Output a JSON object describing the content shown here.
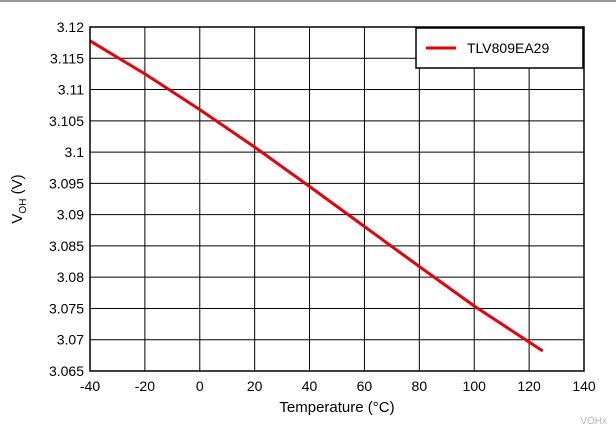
{
  "chart_data": {
    "type": "line",
    "xlabel": "Temperature (°C)",
    "ylabel": {
      "main": "V",
      "sub": "OH",
      "unit": " (V)"
    },
    "xlim": [
      -40,
      140
    ],
    "ylim": [
      3.065,
      3.12
    ],
    "x_ticks": [
      -40,
      -20,
      0,
      20,
      40,
      60,
      80,
      100,
      120,
      140
    ],
    "y_ticks": [
      3.065,
      3.07,
      3.075,
      3.08,
      3.085,
      3.09,
      3.095,
      3.1,
      3.105,
      3.11,
      3.115,
      3.12
    ],
    "x_tick_labels": [
      "-40",
      "-20",
      "0",
      "20",
      "40",
      "60",
      "80",
      "100",
      "120",
      "140"
    ],
    "y_tick_labels": [
      "3.065",
      "3.07",
      "3.075",
      "3.08",
      "3.085",
      "3.09",
      "3.095",
      "3.1",
      "3.105",
      "3.11",
      "3.115",
      "3.12"
    ],
    "grid": true,
    "legend_position": "top-right",
    "series": [
      {
        "name": "TLV809EA29",
        "color": "#e8000b",
        "x": [
          -40,
          -20,
          0,
          20,
          40,
          60,
          80,
          100,
          125
        ],
        "y": [
          3.1178,
          3.1125,
          3.1068,
          3.1008,
          3.0945,
          3.0881,
          3.0817,
          3.0754,
          3.0682
        ]
      }
    ]
  },
  "watermark": "VOHx"
}
